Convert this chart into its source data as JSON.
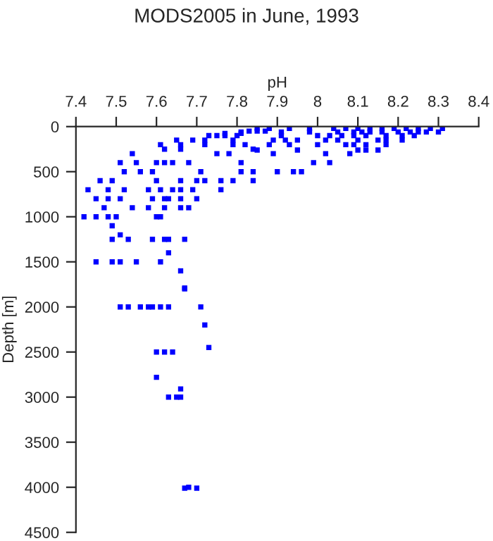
{
  "chart_data": {
    "type": "scatter",
    "title": "MODS2005 in June, 1993",
    "xlabel": "pH",
    "ylabel": "Depth [m]",
    "xlim": [
      7.4,
      8.4
    ],
    "xticks": [
      7.4,
      7.5,
      7.6,
      7.7,
      7.8,
      7.9,
      8,
      8.1,
      8.2,
      8.3,
      8.4
    ],
    "ylim": [
      4500,
      0
    ],
    "yticks": [
      0,
      500,
      1000,
      1500,
      2000,
      2500,
      3000,
      3500,
      4000,
      4500
    ],
    "grid": false,
    "marker": "square",
    "legend": false,
    "series": [
      {
        "color": "#0000ff",
        "x": [
          7.87,
          7.85,
          7.83,
          7.81,
          7.77,
          7.73,
          7.75,
          7.77,
          7.65,
          7.69,
          7.72,
          7.79,
          7.61,
          7.66,
          7.72,
          7.79,
          7.82,
          7.62,
          7.66,
          7.84,
          7.54,
          7.75,
          7.78,
          7.51,
          7.55,
          7.6,
          7.62,
          7.64,
          7.68,
          7.81,
          7.52,
          7.56,
          7.59,
          7.71,
          7.81,
          7.84,
          7.46,
          7.49,
          7.6,
          7.66,
          7.7,
          7.72,
          7.76,
          7.79,
          7.84,
          7.43,
          7.48,
          7.52,
          7.58,
          7.61,
          7.64,
          7.66,
          7.69,
          7.45,
          7.48,
          7.51,
          7.59,
          7.62,
          7.63,
          7.66,
          7.7,
          7.47,
          7.54,
          7.58,
          7.62,
          7.66,
          7.68,
          7.42,
          7.45,
          7.48,
          7.5,
          7.6,
          7.61,
          7.49,
          7.51,
          7.49,
          7.53,
          7.59,
          7.62,
          7.63,
          7.67,
          7.63,
          7.45,
          7.49,
          7.51,
          7.55,
          7.61,
          7.66,
          7.67,
          7.51,
          7.53,
          7.56,
          7.58,
          7.59,
          7.61,
          7.63,
          7.71,
          7.67,
          7.72,
          7.73,
          7.6,
          7.62,
          7.64,
          7.6,
          7.66,
          7.63,
          7.65,
          7.66,
          7.67,
          7.68,
          7.7,
          7.85,
          7.88,
          7.93,
          7.98,
          8.04,
          8.07,
          8.1,
          8.13,
          8.16,
          8.19,
          8.22,
          8.25,
          8.28,
          8.31,
          7.81,
          7.91,
          7.98,
          8.05,
          8.09,
          8.11,
          8.13,
          8.16,
          8.2,
          8.23,
          8.25,
          8.27,
          8.3,
          7.8,
          7.91,
          8.0,
          8.03,
          8.06,
          8.09,
          8.12,
          8.17,
          8.21,
          8.24,
          7.89,
          7.92,
          7.95,
          8.02,
          8.05,
          8.1,
          8.15,
          8.17,
          8.21,
          7.88,
          7.93,
          8.0,
          8.07,
          8.09,
          8.12,
          8.17,
          7.85,
          7.95,
          8.1,
          8.12,
          8.15,
          7.89,
          8.02,
          8.08,
          7.99,
          8.03,
          7.9,
          7.94,
          7.96,
          7.76
        ],
        "values": [
          50,
          50,
          50,
          75,
          75,
          100,
          100,
          100,
          150,
          150,
          150,
          150,
          200,
          200,
          200,
          200,
          200,
          250,
          250,
          250,
          300,
          300,
          300,
          400,
          400,
          400,
          400,
          400,
          400,
          400,
          500,
          500,
          500,
          500,
          500,
          500,
          600,
          600,
          600,
          600,
          600,
          600,
          600,
          600,
          600,
          700,
          700,
          700,
          700,
          700,
          700,
          700,
          700,
          800,
          800,
          800,
          800,
          800,
          800,
          800,
          800,
          900,
          900,
          900,
          900,
          900,
          900,
          1000,
          1000,
          1000,
          1000,
          1000,
          1000,
          1100,
          1200,
          1250,
          1250,
          1250,
          1250,
          1250,
          1250,
          1400,
          1500,
          1500,
          1500,
          1500,
          1500,
          1600,
          1800,
          2000,
          2000,
          2000,
          2000,
          2000,
          2000,
          2000,
          2000,
          1790,
          2200,
          2450,
          2500,
          2500,
          2500,
          2780,
          2910,
          3000,
          3000,
          3000,
          4010,
          4000,
          4010,
          20,
          20,
          20,
          20,
          20,
          20,
          20,
          20,
          20,
          20,
          20,
          20,
          20,
          20,
          60,
          60,
          60,
          60,
          60,
          60,
          60,
          60,
          60,
          60,
          60,
          60,
          60,
          100,
          100,
          100,
          100,
          100,
          100,
          100,
          100,
          100,
          100,
          150,
          150,
          150,
          150,
          150,
          150,
          150,
          150,
          150,
          200,
          200,
          200,
          200,
          200,
          200,
          200,
          260,
          260,
          260,
          260,
          260,
          300,
          300,
          300,
          400,
          400,
          500,
          500,
          500,
          700
        ]
      }
    ]
  }
}
